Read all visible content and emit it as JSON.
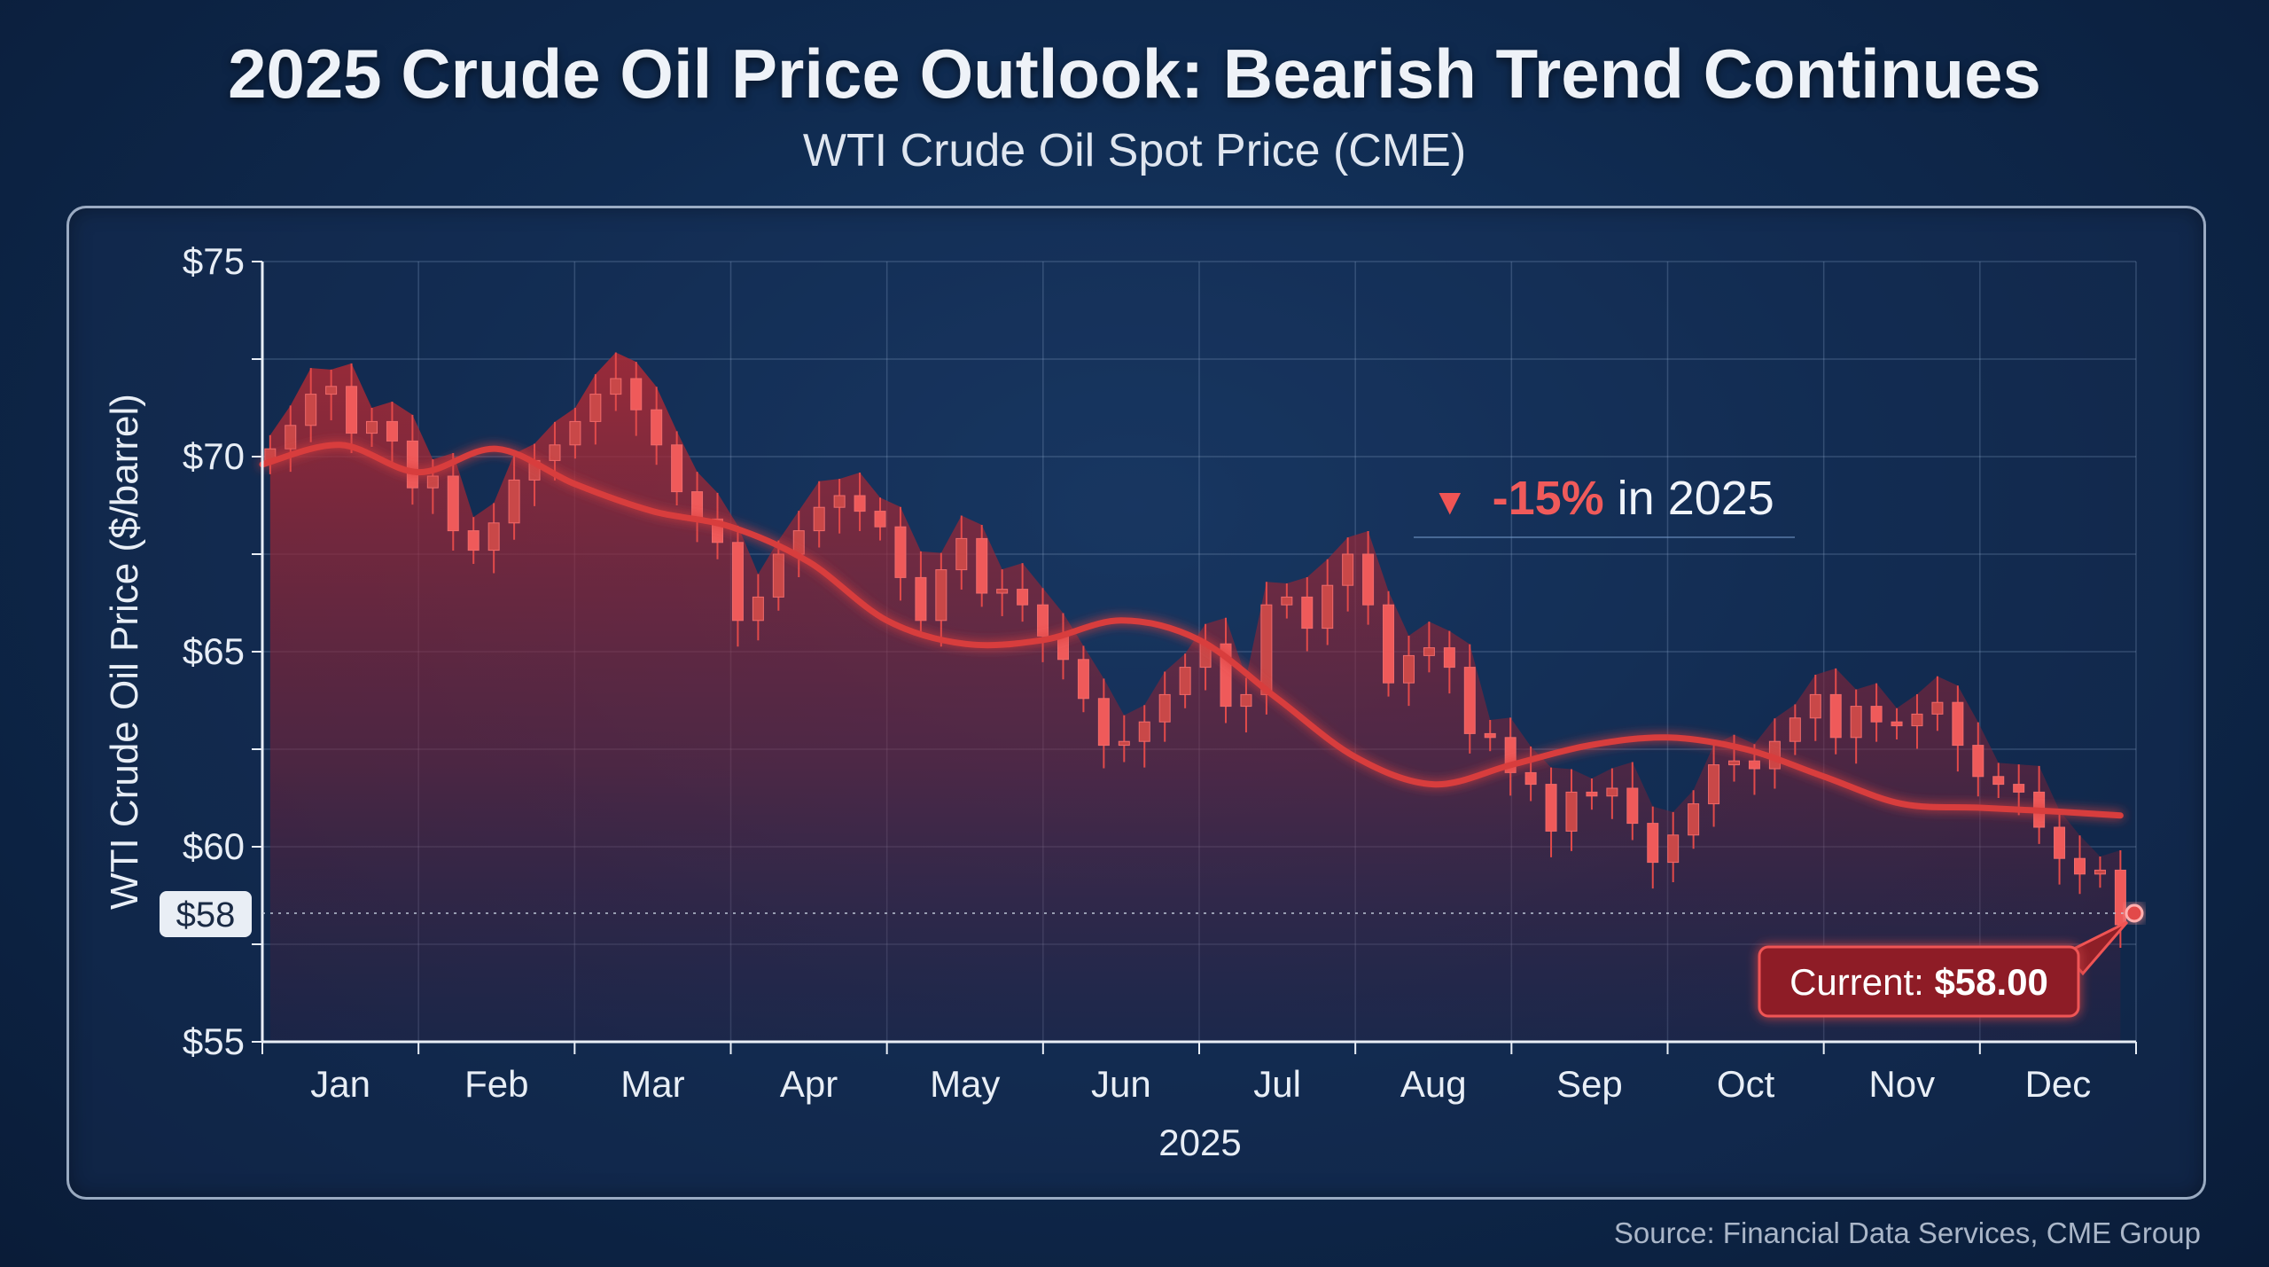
{
  "header": {
    "title": "2025 Crude Oil Price Outlook: Bearish Trend Continues",
    "subtitle": "WTI Crude Oil Spot Price (CME)"
  },
  "footer": {
    "source": "Source: Financial Data Services, CME Group"
  },
  "annotation": {
    "change_arrow": "▼",
    "change_value": "-15%",
    "change_text": " in 2025",
    "current_label": "Current: ",
    "current_value": "$58.00",
    "current_marker_label": "$58"
  },
  "colors": {
    "candle": "#e24a4a",
    "trend": "#d83c3c",
    "area": "#a52a32",
    "background": "#0f2a4f"
  },
  "chart_data": {
    "type": "candlestick",
    "title": "2025 Crude Oil Price Outlook: Bearish Trend Continues",
    "subtitle": "WTI Crude Oil Spot Price (CME)",
    "xlabel": "2025",
    "ylabel": "WTI Crude Oil Price ($/barrel)",
    "ylim": [
      55,
      75
    ],
    "yticks": [
      55,
      60,
      65,
      70,
      75
    ],
    "ytick_labels": [
      "$55",
      "$60",
      "$65",
      "$70",
      "$75"
    ],
    "x_categories": [
      "Jan",
      "Feb",
      "Mar",
      "Apr",
      "May",
      "Jun",
      "Jul",
      "Aug",
      "Sep",
      "Oct",
      "Nov",
      "Dec"
    ],
    "grid": true,
    "current_value": 58.0,
    "change_pct": -15,
    "trend_line": {
      "x": [
        0,
        0.5,
        1,
        1.5,
        2,
        2.5,
        3,
        3.5,
        4,
        4.5,
        5,
        5.5,
        6,
        6.5,
        7,
        7.5,
        8,
        8.5,
        9,
        9.5,
        10,
        10.5,
        11,
        11.5,
        11.9
      ],
      "y": [
        69.8,
        70.3,
        69.6,
        70.2,
        69.3,
        68.6,
        68.2,
        67.3,
        65.8,
        65.2,
        65.3,
        65.8,
        65.3,
        63.8,
        62.3,
        61.6,
        62.1,
        62.6,
        62.8,
        62.5,
        61.8,
        61.1,
        61.0,
        60.9,
        60.8
      ]
    },
    "candles_close": [
      70.2,
      70.8,
      71.6,
      71.8,
      70.6,
      70.9,
      70.4,
      69.2,
      69.5,
      68.1,
      67.6,
      68.3,
      69.4,
      69.9,
      70.3,
      70.9,
      71.6,
      72.0,
      71.2,
      70.3,
      69.1,
      68.4,
      67.8,
      65.8,
      66.4,
      67.5,
      68.1,
      68.7,
      69.0,
      68.6,
      68.2,
      66.9,
      65.8,
      67.1,
      67.9,
      66.5,
      66.6,
      66.2,
      65.4,
      64.8,
      63.8,
      62.6,
      62.7,
      63.2,
      63.9,
      64.6,
      65.2,
      63.6,
      63.9,
      66.2,
      66.4,
      65.6,
      66.7,
      67.5,
      66.2,
      64.2,
      64.9,
      65.1,
      64.6,
      62.9,
      62.8,
      61.9,
      61.6,
      60.4,
      61.4,
      61.3,
      61.5,
      60.6,
      59.6,
      60.3,
      61.1,
      62.1,
      62.2,
      62.0,
      62.7,
      63.3,
      63.9,
      62.8,
      63.6,
      63.2,
      63.1,
      63.4,
      63.7,
      62.6,
      61.8,
      61.6,
      61.4,
      60.5,
      59.7,
      59.3,
      59.4,
      58.0
    ]
  }
}
